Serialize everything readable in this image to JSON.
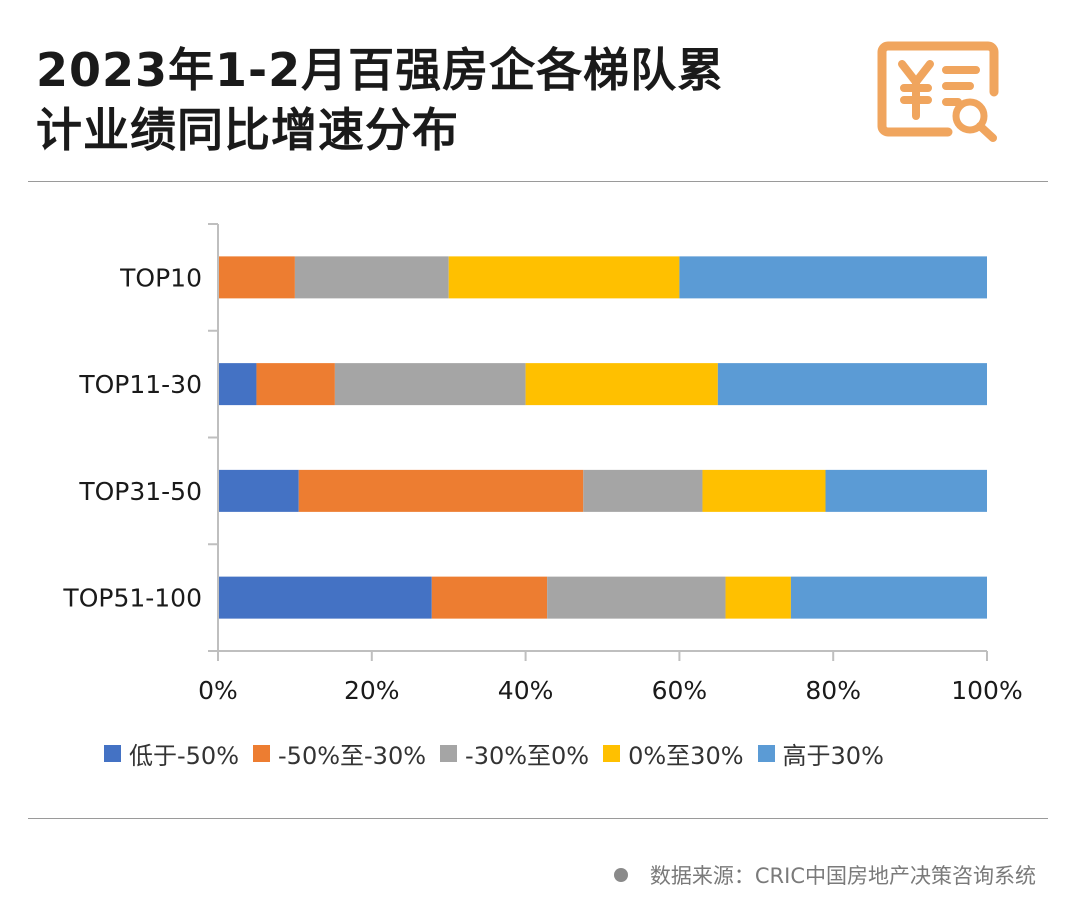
{
  "title": {
    "line1": "2023年1-2月百强房企各梯队累",
    "line2": "计业绩同比增速分布"
  },
  "logo_icon": "yuan-document-search-icon",
  "source": {
    "text": "数据来源：CRIC中国房地产决策咨询系统"
  },
  "colors": {
    "accent": "#F0A55E",
    "axis": "#bfbfbf"
  },
  "chart_data": {
    "type": "bar",
    "orientation": "horizontal",
    "stacked": true,
    "categories": [
      "TOP10",
      "TOP11-30",
      "TOP31-50",
      "TOP51-100"
    ],
    "series": [
      {
        "name": "低于-50%",
        "color": "#4472C4",
        "values": [
          0,
          5,
          10.5,
          27.8
        ]
      },
      {
        "name": "-50%至-30%",
        "color": "#ED7D31",
        "values": [
          10,
          10.2,
          37,
          15
        ]
      },
      {
        "name": "-30%至0%",
        "color": "#A5A5A5",
        "values": [
          20,
          24.8,
          15.5,
          23.2
        ]
      },
      {
        "name": "0%至30%",
        "color": "#FFC000",
        "values": [
          30,
          25,
          16,
          8.5
        ]
      },
      {
        "name": "高于30%",
        "color": "#5B9BD5",
        "values": [
          40,
          35,
          21,
          25.5
        ]
      }
    ],
    "xlim": [
      0,
      100
    ],
    "xticks": [
      "0%",
      "20%",
      "40%",
      "60%",
      "80%",
      "100%"
    ],
    "grid": false,
    "legend_position": "bottom"
  }
}
